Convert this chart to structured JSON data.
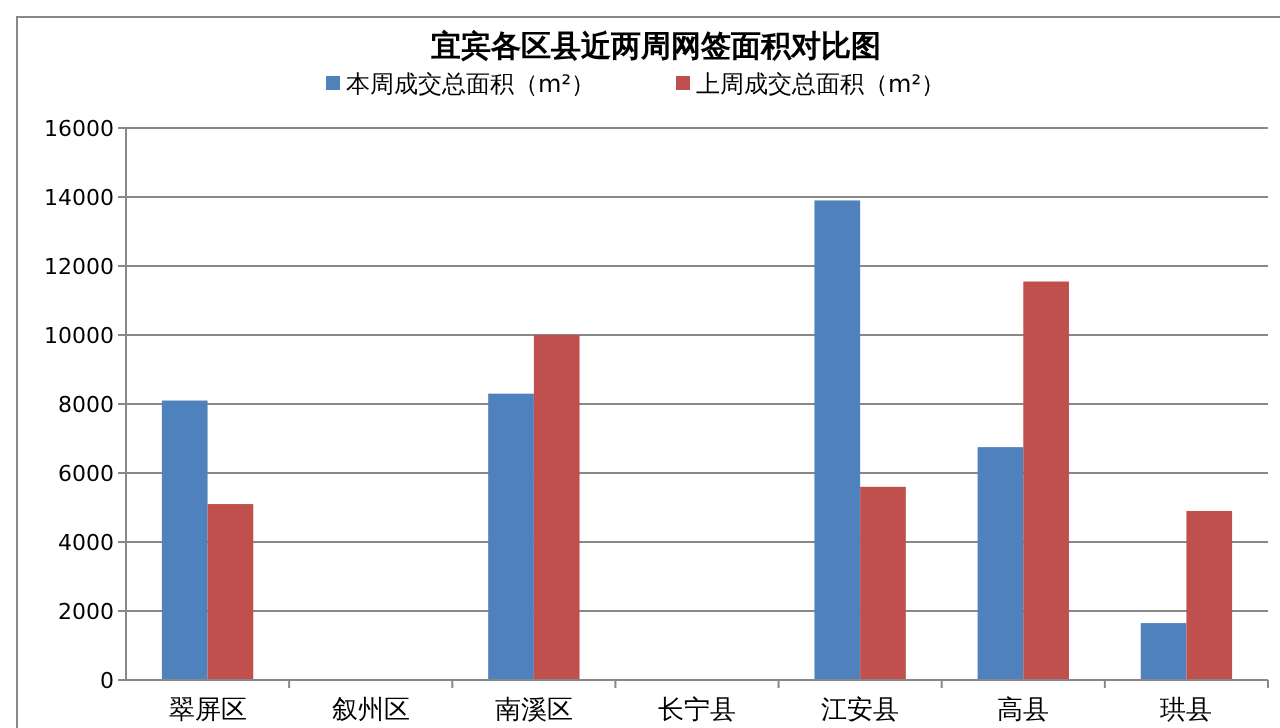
{
  "chart_data": {
    "type": "bar",
    "title": "宜宾各区县近两周网签面积对比图",
    "categories": [
      "翠屏区",
      "叙州区",
      "南溪区",
      "长宁县",
      "江安县",
      "高县",
      "珙县"
    ],
    "series": [
      {
        "name": "本周成交总面积（m²）",
        "color": "#4f81bd",
        "values": [
          8100,
          null,
          8300,
          null,
          13900,
          6750,
          1650
        ]
      },
      {
        "name": "上周成交总面积（m²）",
        "color": "#c0504d",
        "values": [
          5100,
          null,
          10000,
          null,
          5600,
          11550,
          4900
        ]
      }
    ],
    "ylim": [
      0,
      16000
    ],
    "yticks": [
      0,
      2000,
      4000,
      6000,
      8000,
      10000,
      12000,
      14000,
      16000
    ],
    "grid": "y",
    "legend": "top"
  }
}
